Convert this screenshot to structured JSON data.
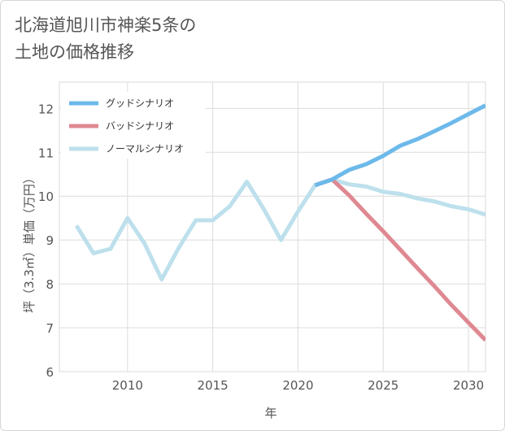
{
  "title": {
    "line1": "北海道旭川市神楽5条の",
    "line2": "土地の価格推移"
  },
  "chart_data": {
    "type": "line",
    "xlabel": "年",
    "ylabel": "坪（3.3㎡）単価（万円）",
    "xlim": [
      2006,
      2031
    ],
    "ylim": [
      6,
      12.6
    ],
    "x_ticks": [
      2010,
      2015,
      2020,
      2025,
      2030
    ],
    "y_ticks": [
      6,
      7,
      8,
      9,
      10,
      11,
      12
    ],
    "grid": true,
    "legend_position": "top-left",
    "series": [
      {
        "name": "グッドシナリオ",
        "color": "#6cb9ea",
        "points": [
          [
            2021,
            10.25
          ],
          [
            2022,
            10.38
          ],
          [
            2023,
            10.6
          ],
          [
            2024,
            10.73
          ],
          [
            2025,
            10.92
          ],
          [
            2026,
            11.15
          ],
          [
            2027,
            11.3
          ],
          [
            2028,
            11.48
          ],
          [
            2029,
            11.67
          ],
          [
            2030,
            11.87
          ],
          [
            2031,
            12.07
          ]
        ]
      },
      {
        "name": "バッドシナリオ",
        "color": "#df8891",
        "points": [
          [
            2021,
            10.25
          ],
          [
            2022,
            10.38
          ],
          [
            2023,
            10.02
          ],
          [
            2024,
            9.6
          ],
          [
            2025,
            9.2
          ],
          [
            2026,
            8.78
          ],
          [
            2027,
            8.36
          ],
          [
            2028,
            7.95
          ],
          [
            2029,
            7.52
          ],
          [
            2030,
            7.12
          ],
          [
            2031,
            6.72
          ]
        ]
      },
      {
        "name": "ノーマルシナリオ",
        "color": "#bde0ec",
        "points": [
          [
            2007,
            9.33
          ],
          [
            2008,
            8.7
          ],
          [
            2009,
            8.8
          ],
          [
            2010,
            9.5
          ],
          [
            2011,
            8.92
          ],
          [
            2012,
            8.1
          ],
          [
            2013,
            8.82
          ],
          [
            2014,
            9.45
          ],
          [
            2015,
            9.45
          ],
          [
            2016,
            9.77
          ],
          [
            2017,
            10.33
          ],
          [
            2018,
            9.7
          ],
          [
            2019,
            9.0
          ],
          [
            2020,
            9.65
          ],
          [
            2021,
            10.25
          ],
          [
            2022,
            10.38
          ],
          [
            2023,
            10.27
          ],
          [
            2024,
            10.22
          ],
          [
            2025,
            10.1
          ],
          [
            2026,
            10.05
          ],
          [
            2027,
            9.95
          ],
          [
            2028,
            9.88
          ],
          [
            2029,
            9.77
          ],
          [
            2030,
            9.7
          ],
          [
            2031,
            9.58
          ]
        ]
      }
    ]
  }
}
